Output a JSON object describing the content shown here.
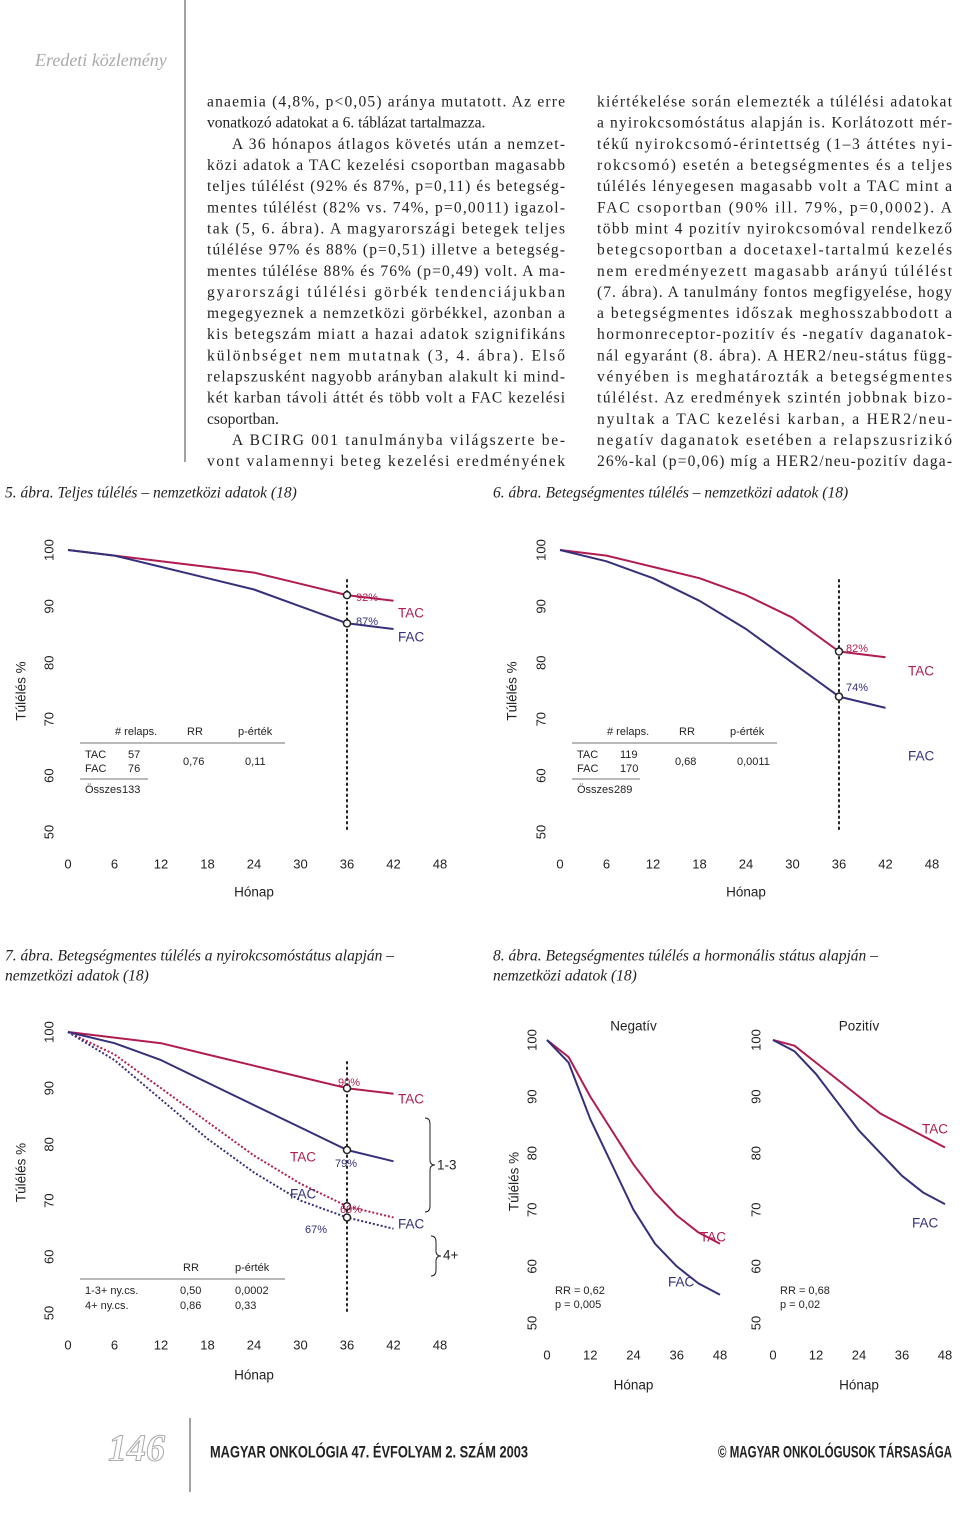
{
  "header": {
    "section": "Eredeti közlemény"
  },
  "text": {
    "left": [
      "anaemia (4,8%, p<0,05) aránya mutatott. Az erre",
      "vonatkozó adatokat a 6. táblázat tartalmazza.",
      "A 36 hónapos átlagos követés után a nemzet-",
      "közi adatok a TAC kezelési csoportban magasabb",
      "teljes túlélést (92% és 87%, p=0,11) és betegség-",
      "mentes túlélést (82% vs. 74%, p=0,0011) igazol-",
      "tak (5, 6. ábra). A magyarországi betegek teljes",
      "túlélése 97% és 88% (p=0,51) illetve a betegség-",
      "mentes túlélése 88% és 76% (p=0,49) volt. A ma-",
      "gyarországi túlélési görbék tendenciájukban",
      "megegyeznek a nemzetközi görbékkel, azonban a",
      "kis betegszám miatt a hazai adatok szignifikáns",
      "különbséget nem mutatnak (3, 4. ábra). Első",
      "relapszusként nagyobb arányban alakult ki mind-",
      "két karban távoli áttét és több volt a FAC kezelési",
      "csoportban.",
      "A BCIRG 001 tanulmányba világszerte be-",
      "vont valamennyi beteg kezelési eredményének"
    ],
    "right": [
      "kiértékelése során elemezték a túlélési adatokat",
      "a nyirokcsomóstátus alapján is. Korlátozott mér-",
      "tékű nyirokcsomó-érintettség (1–3 áttétes nyi-",
      "rokcsomó) esetén a betegségmentes és a teljes",
      "túlélés lényegesen magasabb volt a TAC mint a",
      "FAC csoportban (90% ill. 79%, p=0,0002). A",
      "több mint 4 pozitív nyirokcsomóval rendelkező",
      "betegcsoportban a docetaxel-tartalmú kezelés",
      "nem eredményezett magasabb arányú túlélést",
      "(7. ábra). A tanulmány fontos megfigyelése, hogy",
      "a betegségmentes időszak meghosszabbodott a",
      "hormonreceptor-pozitív és -negatív daganatok-",
      "nál egyaránt (8. ábra). A HER2/neu-státus függ-",
      "vényében is meghatározták a betegségmentes",
      "túlélést. Az eredmények szintén jobbnak bizo-",
      "nyultak a TAC kezelési karban, a HER2/neu-",
      "negatív daganatok esetében a relapszusrizikó",
      "26%-kal (p=0,06) míg a HER2/neu-pozitív daga-"
    ]
  },
  "captions": [
    [
      "5. ábra. Teljes túlélés – nemzetközi adatok (18)"
    ],
    [
      "6. ábra. Betegségmentes túlélés – nemzetközi adatok (18)"
    ],
    [
      "7. ábra. Betegségmentes túlélés a nyirokcsomóstátus alapján –",
      "nemzetközi adatok (18)"
    ],
    [
      "8. ábra. Betegségmentes túlélés a hormonális státus alapján –",
      "nemzetközi adatok (18)"
    ]
  ],
  "chart_data": [
    {
      "type": "line",
      "ylabel": "Túlélés %",
      "xlabel": "Hónap",
      "x": [
        0,
        6,
        12,
        18,
        24,
        30,
        36,
        42
      ],
      "xlim": [
        0,
        48
      ],
      "xticks": [
        0,
        6,
        12,
        18,
        24,
        30,
        36,
        42,
        48
      ],
      "ylim": [
        50,
        100
      ],
      "yticks": [
        50,
        60,
        70,
        80,
        90,
        100
      ],
      "reference_x": 36,
      "series": [
        {
          "name": "TAC",
          "color": "#b01c52",
          "values": [
            100,
            99,
            98,
            97,
            96,
            94,
            92,
            91
          ]
        },
        {
          "name": "FAC",
          "color": "#35307a",
          "values": [
            100,
            99,
            97,
            95,
            93,
            90,
            87,
            86
          ]
        }
      ],
      "markers": [
        {
          "x": 36,
          "y": 92,
          "label": "92%"
        },
        {
          "x": 36,
          "y": 87,
          "label": "87%"
        }
      ],
      "table": {
        "header": [
          "# relaps.",
          "RR",
          "p-érték"
        ],
        "rows": [
          [
            "TAC",
            "57"
          ],
          [
            "FAC",
            "76"
          ]
        ],
        "stats": [
          "0,76",
          "0,11"
        ],
        "total": [
          "Összes",
          "133"
        ]
      }
    },
    {
      "type": "line",
      "ylabel": "Túlélés %",
      "xlabel": "Hónap",
      "x": [
        0,
        6,
        12,
        18,
        24,
        30,
        36,
        42
      ],
      "xlim": [
        0,
        48
      ],
      "xticks": [
        0,
        6,
        12,
        18,
        24,
        30,
        36,
        42,
        48
      ],
      "ylim": [
        50,
        100
      ],
      "yticks": [
        50,
        60,
        70,
        80,
        90,
        100
      ],
      "reference_x": 36,
      "series": [
        {
          "name": "TAC",
          "color": "#b01c52",
          "values": [
            100,
            99,
            97,
            95,
            92,
            88,
            82,
            81
          ]
        },
        {
          "name": "FAC",
          "color": "#35307a",
          "values": [
            100,
            98,
            95,
            91,
            86,
            80,
            74,
            72
          ]
        }
      ],
      "markers": [
        {
          "x": 36,
          "y": 82,
          "label": "82%"
        },
        {
          "x": 36,
          "y": 74,
          "label": "74%"
        }
      ],
      "table": {
        "header": [
          "# relaps.",
          "RR",
          "p-érték"
        ],
        "rows": [
          [
            "TAC",
            "119"
          ],
          [
            "FAC",
            "170"
          ]
        ],
        "stats": [
          "0,68",
          "0,0011"
        ],
        "total": [
          "Összes",
          "289"
        ]
      }
    },
    {
      "type": "line",
      "ylabel": "Túlélés %",
      "xlabel": "Hónap",
      "x": [
        0,
        6,
        12,
        18,
        24,
        30,
        36,
        42
      ],
      "xlim": [
        0,
        48
      ],
      "xticks": [
        0,
        6,
        12,
        18,
        24,
        30,
        36,
        42,
        48
      ],
      "ylim": [
        50,
        100
      ],
      "yticks": [
        50,
        60,
        70,
        80,
        90,
        100
      ],
      "reference_x": 36,
      "series": [
        {
          "name": "TAC",
          "color": "#b01c52",
          "values": [
            100,
            99,
            98,
            96,
            94,
            92,
            90,
            89
          ]
        },
        {
          "name": "FAC",
          "color": "#35307a",
          "values": [
            100,
            98,
            95,
            91,
            87,
            83,
            79,
            77
          ]
        },
        {
          "name": "TAC",
          "color": "#b01c52",
          "line_style": "dotted",
          "values": [
            100,
            96,
            90,
            84,
            78,
            73,
            69,
            67
          ]
        },
        {
          "name": "FAC",
          "color": "#35307a",
          "line_style": "dotted",
          "values": [
            100,
            95,
            88,
            81,
            75,
            70,
            67,
            65
          ]
        }
      ],
      "markers": [
        {
          "x": 36,
          "y": 90,
          "label": "90%"
        },
        {
          "x": 36,
          "y": 79,
          "label": "79%"
        },
        {
          "x": 36,
          "y": 69,
          "label": "69%"
        },
        {
          "x": 36,
          "y": 67,
          "label": "67%"
        }
      ],
      "group_labels": [
        "1-3",
        "4+"
      ],
      "table": {
        "header": [
          "RR",
          "p-érték"
        ],
        "rows": [
          [
            "1-3+ ny.cs.",
            "0,50",
            "0,0002"
          ],
          [
            "4+ ny.cs.",
            "0,86",
            "0,33"
          ]
        ]
      }
    },
    {
      "type": "line",
      "title": "Negatív",
      "ylabel": "Túlélés %",
      "xlabel": "Hónap",
      "x": [
        0,
        6,
        12,
        18,
        24,
        30,
        36,
        42,
        48
      ],
      "xlim": [
        0,
        48
      ],
      "xticks": [
        0,
        12,
        24,
        36,
        48
      ],
      "ylim": [
        50,
        100
      ],
      "yticks": [
        50,
        60,
        70,
        80,
        90,
        100
      ],
      "series": [
        {
          "name": "TAC",
          "color": "#b01c52",
          "values": [
            100,
            97,
            90,
            84,
            78,
            73,
            69,
            66,
            64
          ]
        },
        {
          "name": "FAC",
          "color": "#35307a",
          "values": [
            100,
            96,
            86,
            78,
            70,
            64,
            60,
            57,
            55
          ]
        }
      ],
      "annotations": [
        "RR = 0,62",
        "p = 0,005"
      ]
    },
    {
      "type": "line",
      "title": "Pozitív",
      "xlabel": "Hónap",
      "x": [
        0,
        6,
        12,
        18,
        24,
        30,
        36,
        42,
        48
      ],
      "xlim": [
        0,
        48
      ],
      "xticks": [
        0,
        12,
        24,
        36,
        48
      ],
      "ylim": [
        50,
        100
      ],
      "yticks": [
        50,
        60,
        70,
        80,
        90,
        100
      ],
      "series": [
        {
          "name": "TAC",
          "color": "#b01c52",
          "values": [
            100,
            99,
            96,
            93,
            90,
            87,
            85,
            83,
            81
          ]
        },
        {
          "name": "FAC",
          "color": "#35307a",
          "values": [
            100,
            98,
            94,
            89,
            84,
            80,
            76,
            73,
            71
          ]
        }
      ],
      "annotations": [
        "RR = 0,68",
        "p = 0,02"
      ]
    }
  ],
  "footer": {
    "page": "146",
    "journal": "MAGYAR ONKOLÓGIA 47. ÉVFOLYAM 2. SZÁM 2003",
    "copyright": "© MAGYAR ONKOLÓGUSOK TÁRSASÁGA"
  }
}
